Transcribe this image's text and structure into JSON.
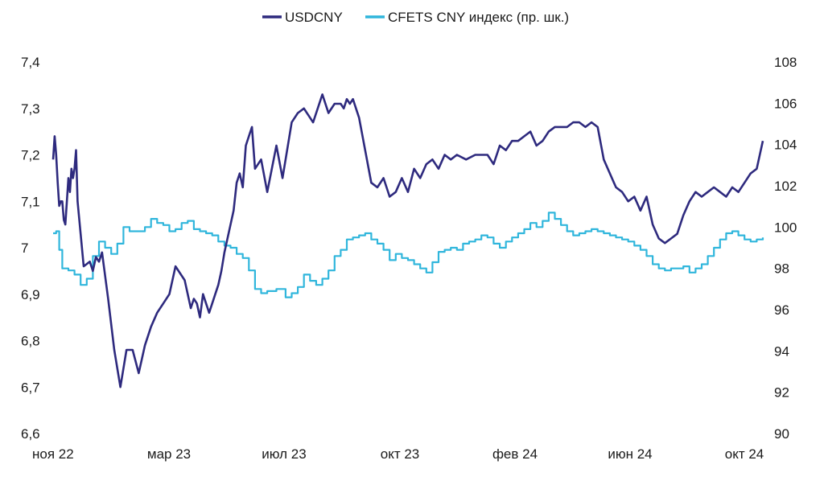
{
  "chart_data": {
    "type": "line",
    "title": "",
    "legend": {
      "placement": "top-center"
    },
    "x_labels": [
      "ноя 22",
      "мар 23",
      "июл 23",
      "окт 23",
      "фев 24",
      "июн 24",
      "окт 24"
    ],
    "left_axis": {
      "ylim": [
        6.6,
        7.4
      ],
      "ticks": [
        "6,6",
        "6,7",
        "6,8",
        "6,9",
        "7",
        "7,1",
        "7,2",
        "7,3",
        "7,4"
      ]
    },
    "right_axis": {
      "ylim": [
        90,
        108
      ],
      "ticks": [
        "90",
        "92",
        "94",
        "96",
        "98",
        "100",
        "102",
        "104",
        "106",
        "108"
      ]
    },
    "grid": false,
    "series": [
      {
        "name": "USDCNY",
        "axis": "left",
        "color": "#2e2a7e",
        "x": [
          0,
          0.05,
          0.1,
          0.15,
          0.2,
          0.25,
          0.3,
          0.35,
          0.4,
          0.45,
          0.5,
          0.55,
          0.6,
          0.65,
          0.7,
          0.75,
          0.8,
          0.9,
          1.0,
          1.2,
          1.3,
          1.4,
          1.5,
          1.6,
          1.8,
          2.0,
          2.2,
          2.4,
          2.6,
          2.8,
          3.0,
          3.2,
          3.4,
          3.6,
          3.8,
          4.0,
          4.3,
          4.5,
          4.6,
          4.7,
          4.8,
          4.9,
          5.0,
          5.1,
          5.2,
          5.3,
          5.4,
          5.5,
          5.6,
          5.7,
          5.8,
          5.9,
          6.0,
          6.1,
          6.2,
          6.3,
          6.4,
          6.5,
          6.6,
          6.8,
          7.0,
          7.3,
          7.5,
          7.8,
          8.0,
          8.2,
          8.5,
          8.8,
          9.0,
          9.2,
          9.4,
          9.5,
          9.6,
          9.7,
          9.8,
          9.9,
          10.0,
          10.2,
          10.4,
          10.6,
          10.8,
          11.0,
          11.2,
          11.4,
          11.6,
          11.8,
          12.0,
          12.2,
          12.4,
          12.6,
          12.8,
          13.0,
          13.2,
          13.5,
          13.8,
          14.0,
          14.2,
          14.4,
          14.6,
          14.8,
          15.0,
          15.2,
          15.4,
          15.6,
          15.8,
          16.0,
          16.2,
          16.4,
          16.6,
          16.8,
          17.0,
          17.2,
          17.4,
          17.6,
          17.8,
          18.0,
          18.2,
          18.4,
          18.6,
          18.8,
          19.0,
          19.2,
          19.4,
          19.6,
          19.8,
          20.0,
          20.2,
          20.4,
          20.6,
          20.8,
          21.0,
          21.2,
          21.4,
          21.6,
          21.8,
          22.0,
          22.2,
          22.4,
          22.6,
          22.8,
          23.0,
          23.1,
          23.2
        ],
        "values": [
          7.19,
          7.24,
          7.2,
          7.14,
          7.09,
          7.1,
          7.1,
          7.06,
          7.05,
          7.1,
          7.15,
          7.12,
          7.17,
          7.15,
          7.17,
          7.21,
          7.1,
          7.03,
          6.96,
          6.97,
          6.95,
          6.98,
          6.97,
          6.99,
          6.89,
          6.78,
          6.7,
          6.78,
          6.78,
          6.73,
          6.79,
          6.83,
          6.86,
          6.88,
          6.9,
          6.96,
          6.93,
          6.87,
          6.89,
          6.88,
          6.85,
          6.9,
          6.88,
          6.86,
          6.88,
          6.9,
          6.92,
          6.95,
          6.99,
          7.02,
          7.05,
          7.08,
          7.14,
          7.16,
          7.13,
          7.22,
          7.24,
          7.26,
          7.17,
          7.19,
          7.12,
          7.22,
          7.15,
          7.27,
          7.29,
          7.3,
          7.27,
          7.33,
          7.29,
          7.31,
          7.31,
          7.3,
          7.32,
          7.31,
          7.32,
          7.3,
          7.28,
          7.21,
          7.14,
          7.13,
          7.15,
          7.11,
          7.12,
          7.15,
          7.12,
          7.17,
          7.15,
          7.18,
          7.19,
          7.17,
          7.2,
          7.19,
          7.2,
          7.19,
          7.2,
          7.2,
          7.2,
          7.18,
          7.22,
          7.21,
          7.23,
          7.23,
          7.24,
          7.25,
          7.22,
          7.23,
          7.25,
          7.26,
          7.26,
          7.26,
          7.27,
          7.27,
          7.26,
          7.27,
          7.26,
          7.19,
          7.16,
          7.13,
          7.12,
          7.1,
          7.11,
          7.08,
          7.11,
          7.05,
          7.02,
          7.01,
          7.02,
          7.03,
          7.07,
          7.1,
          7.12,
          7.11,
          7.12,
          7.13,
          7.12,
          7.11,
          7.13,
          7.12,
          7.14,
          7.16,
          7.17,
          7.2,
          7.23
        ]
      },
      {
        "name": "CFETS CNY индекс (пр. шк.)",
        "axis": "right",
        "color": "#30b6dc",
        "x": [
          0,
          0.1,
          0.2,
          0.3,
          0.5,
          0.7,
          0.9,
          1.1,
          1.3,
          1.5,
          1.7,
          1.9,
          2.1,
          2.3,
          2.5,
          2.8,
          3.0,
          3.2,
          3.4,
          3.6,
          3.8,
          4.0,
          4.2,
          4.4,
          4.6,
          4.8,
          5.0,
          5.2,
          5.4,
          5.6,
          5.8,
          6.0,
          6.2,
          6.4,
          6.6,
          6.8,
          7.0,
          7.3,
          7.6,
          7.8,
          8.0,
          8.2,
          8.4,
          8.6,
          8.8,
          9.0,
          9.2,
          9.4,
          9.6,
          9.8,
          10.0,
          10.2,
          10.4,
          10.6,
          10.8,
          11.0,
          11.2,
          11.4,
          11.6,
          11.8,
          12.0,
          12.2,
          12.4,
          12.6,
          12.8,
          13.0,
          13.2,
          13.4,
          13.6,
          13.8,
          14.0,
          14.2,
          14.4,
          14.6,
          14.8,
          15.0,
          15.2,
          15.4,
          15.6,
          15.8,
          16.0,
          16.2,
          16.4,
          16.6,
          16.8,
          17.0,
          17.2,
          17.4,
          17.6,
          17.8,
          18.0,
          18.2,
          18.4,
          18.6,
          18.8,
          19.0,
          19.2,
          19.4,
          19.6,
          19.8,
          20.0,
          20.2,
          20.4,
          20.6,
          20.8,
          21.0,
          21.2,
          21.4,
          21.6,
          21.8,
          22.0,
          22.2,
          22.4,
          22.6,
          22.8,
          23.0,
          23.2
        ],
        "values": [
          99.7,
          99.8,
          98.9,
          98.0,
          97.9,
          97.7,
          97.2,
          97.5,
          98.6,
          99.3,
          99.0,
          98.7,
          99.2,
          100.0,
          99.8,
          99.8,
          100.0,
          100.4,
          100.2,
          100.1,
          99.8,
          99.9,
          100.2,
          100.3,
          99.9,
          99.8,
          99.7,
          99.6,
          99.3,
          99.1,
          99.0,
          98.7,
          98.5,
          97.9,
          97.0,
          96.8,
          96.9,
          97.0,
          96.6,
          96.8,
          97.1,
          97.7,
          97.4,
          97.2,
          97.5,
          97.9,
          98.6,
          98.9,
          99.4,
          99.5,
          99.6,
          99.7,
          99.4,
          99.2,
          98.9,
          98.4,
          98.7,
          98.5,
          98.4,
          98.2,
          98.0,
          97.8,
          98.3,
          98.8,
          98.9,
          99.0,
          98.9,
          99.2,
          99.3,
          99.4,
          99.6,
          99.5,
          99.2,
          99.0,
          99.3,
          99.5,
          99.7,
          99.9,
          100.2,
          100.0,
          100.3,
          100.7,
          100.4,
          100.1,
          99.8,
          99.6,
          99.7,
          99.8,
          99.9,
          99.8,
          99.7,
          99.6,
          99.5,
          99.4,
          99.3,
          99.1,
          98.9,
          98.6,
          98.2,
          98.0,
          97.9,
          98.0,
          98.0,
          98.1,
          97.8,
          98.0,
          98.2,
          98.6,
          99.0,
          99.4,
          99.7,
          99.8,
          99.6,
          99.4,
          99.3,
          99.4,
          99.5
        ]
      }
    ]
  }
}
